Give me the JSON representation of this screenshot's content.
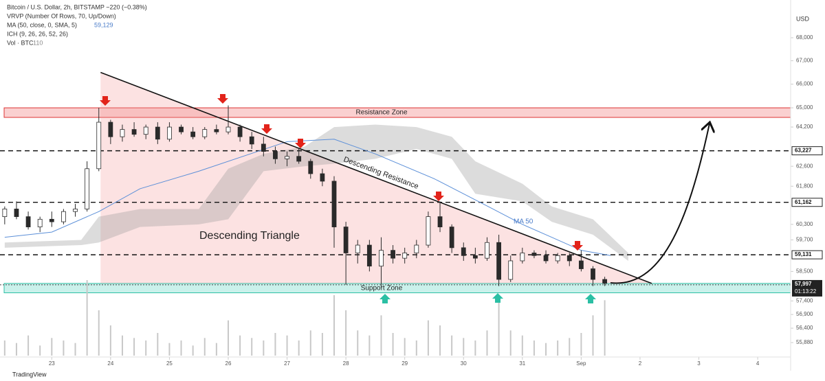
{
  "chart_data": {
    "type": "candlestick",
    "header": [
      "Bitcoin / U.S. Dollar, 2h, BITSTAMP −220 (−0.38%)",
      "VRVP (Number Of Rows, 70, Up/Down)",
      "MA (50, close, 0, SMA, 5)",
      "ICH (9, 26, 26, 52, 26)",
      "Vol · BTC"
    ],
    "ma_value": "59,129",
    "vol_value": "110",
    "currency": "USD",
    "brand": "TradingView",
    "log_scale": true,
    "xlim": [
      22.12,
      35.56
    ],
    "ylim": [
      55120,
      69520
    ],
    "xticks": [
      23,
      24,
      25,
      26,
      27,
      28,
      29,
      30,
      31,
      {
        "value": 32,
        "label": "Sep"
      },
      {
        "value": 33,
        "label": "2"
      },
      {
        "value": 34,
        "label": "3"
      },
      {
        "value": 35,
        "label": "4"
      }
    ],
    "yticks": [
      {
        "value": 68000,
        "label": "68,000"
      },
      {
        "value": 67000,
        "label": "67,000"
      },
      {
        "value": 66000,
        "label": "66,000"
      },
      {
        "value": 65000,
        "label": "65,000"
      },
      {
        "value": 64200,
        "label": "64,200"
      },
      {
        "value": 62600,
        "label": "62,600"
      },
      {
        "value": 61800,
        "label": "61,800"
      },
      {
        "value": 60300,
        "label": "60,300"
      },
      {
        "value": 59700,
        "label": "59,700"
      },
      {
        "value": 58500,
        "label": "58,500"
      },
      {
        "value": 57400,
        "label": "57,400"
      },
      {
        "value": 56900,
        "label": "56,900"
      },
      {
        "value": 56400,
        "label": "56,400"
      },
      {
        "value": 55880,
        "label": "55,880"
      }
    ],
    "levels": [
      {
        "value": 63227,
        "label": "63,227"
      },
      {
        "value": 61162,
        "label": "61,162"
      },
      {
        "value": 59131,
        "label": "59,131"
      }
    ],
    "last_price": {
      "value": 57997,
      "label": "57,997",
      "countdown": "01:13:22"
    },
    "up_color": "#ffffff",
    "down_color": "#2a2a2a",
    "x": [
      22.2,
      22.4,
      22.6,
      22.8,
      23.0,
      23.2,
      23.4,
      23.6,
      23.8,
      24.0,
      24.2,
      24.4,
      24.6,
      24.8,
      25.0,
      25.2,
      25.4,
      25.6,
      25.8,
      26.0,
      26.2,
      26.4,
      26.6,
      26.8,
      27.0,
      27.2,
      27.4,
      27.6,
      27.8,
      28.0,
      28.2,
      28.4,
      28.6,
      28.8,
      29.0,
      29.2,
      29.4,
      29.6,
      29.8,
      30.0,
      30.2,
      30.4,
      30.6,
      30.8,
      31.0,
      31.2,
      31.4,
      31.6,
      31.8,
      32.0,
      32.2,
      32.4
    ],
    "open": [
      60600,
      60900,
      60600,
      60200,
      60500,
      60400,
      60800,
      60900,
      62500,
      64400,
      63800,
      64100,
      63900,
      64200,
      63700,
      64200,
      64000,
      63800,
      64100,
      64000,
      64200,
      63800,
      63500,
      63200,
      62900,
      63000,
      62800,
      62300,
      62000,
      60200,
      59200,
      59500,
      58700,
      59300,
      59000,
      59200,
      59500,
      60600,
      60200,
      59400,
      59100,
      59000,
      59600,
      58200,
      58900,
      59200,
      59100,
      58900,
      59100,
      58900,
      58600,
      58200
    ],
    "high": [
      61000,
      61200,
      60800,
      60600,
      60800,
      60900,
      61100,
      62800,
      65000,
      64500,
      64300,
      64400,
      64300,
      64400,
      64400,
      64300,
      64200,
      64200,
      64300,
      65100,
      64300,
      64000,
      63800,
      63400,
      63200,
      63300,
      62900,
      62500,
      62200,
      60400,
      59700,
      59700,
      59800,
      59500,
      59400,
      59700,
      60800,
      61200,
      60300,
      59600,
      59400,
      59800,
      59900,
      59100,
      59400,
      59300,
      59300,
      59200,
      59200,
      59300,
      58700,
      58300
    ],
    "low": [
      60300,
      60500,
      60100,
      60000,
      60200,
      60300,
      60600,
      60800,
      62400,
      63500,
      63600,
      63800,
      63700,
      63500,
      63600,
      63900,
      63700,
      63700,
      63900,
      63900,
      63600,
      63300,
      63000,
      62700,
      62600,
      62700,
      62100,
      61800,
      59400,
      58000,
      58800,
      58500,
      57900,
      58800,
      58800,
      59000,
      59400,
      60000,
      59200,
      58900,
      58800,
      58900,
      57950,
      58100,
      58800,
      59000,
      58800,
      58800,
      58700,
      58500,
      57950,
      57950
    ],
    "close": [
      60900,
      60600,
      60200,
      60500,
      60400,
      60800,
      60900,
      62500,
      64400,
      63800,
      64100,
      63900,
      64200,
      63700,
      64200,
      64000,
      63800,
      64100,
      64000,
      64200,
      63800,
      63500,
      63200,
      62900,
      63000,
      62800,
      62300,
      62000,
      60200,
      59200,
      59500,
      58700,
      59300,
      59000,
      59200,
      59500,
      60600,
      60200,
      59400,
      59100,
      59000,
      59600,
      58200,
      58900,
      59200,
      59100,
      58900,
      59100,
      58900,
      58600,
      58200,
      58050
    ],
    "volume": [
      30,
      25,
      40,
      20,
      35,
      30,
      25,
      150,
      90,
      60,
      40,
      35,
      30,
      45,
      25,
      30,
      20,
      35,
      25,
      70,
      40,
      35,
      30,
      45,
      40,
      30,
      50,
      45,
      120,
      90,
      50,
      40,
      80,
      45,
      35,
      30,
      70,
      60,
      40,
      35,
      30,
      50,
      110,
      50,
      40,
      30,
      25,
      30,
      35,
      45,
      80,
      110
    ],
    "ma50": {
      "name": "MA 50",
      "color": "#5b8fd8",
      "x": [
        22.2,
        23.0,
        23.8,
        24.5,
        25.5,
        26.5,
        27.0,
        27.8,
        28.5,
        29.5,
        30.0,
        30.5,
        31.0,
        31.5,
        32.0,
        32.5
      ],
      "values": [
        59800,
        60000,
        60800,
        61700,
        62400,
        63200,
        63600,
        63700,
        63100,
        62100,
        61500,
        60900,
        60300,
        59800,
        59300,
        59100
      ]
    },
    "cloud": {
      "color": "#9a9a9a",
      "x": [
        22.2,
        23.5,
        23.8,
        24.5,
        25.5,
        26.0,
        26.6,
        27.3,
        27.8,
        28.5,
        29.2,
        29.8,
        30.2,
        31.0,
        31.5,
        32.2,
        32.8
      ],
      "upper": [
        59600,
        59700,
        60600,
        60900,
        60900,
        62500,
        63100,
        63400,
        64200,
        64300,
        64200,
        63800,
        62800,
        61900,
        61000,
        60500,
        59200
      ],
      "lower": [
        59400,
        59500,
        59600,
        60200,
        60300,
        60500,
        62400,
        62600,
        62700,
        62900,
        63300,
        62900,
        61500,
        61200,
        60400,
        59900,
        58900
      ]
    },
    "resistance_zone": {
      "label": "Resistance Zone",
      "top": 65000,
      "bottom": 64600
    },
    "support_zone": {
      "label": "Support Zone",
      "top": 58050,
      "bottom": 57700
    },
    "trendline": {
      "label": "Descending Resistance",
      "x": [
        23.83,
        33.2
      ],
      "values": [
        66500,
        58050
      ]
    },
    "pattern_label": "Descending Triangle"
  }
}
